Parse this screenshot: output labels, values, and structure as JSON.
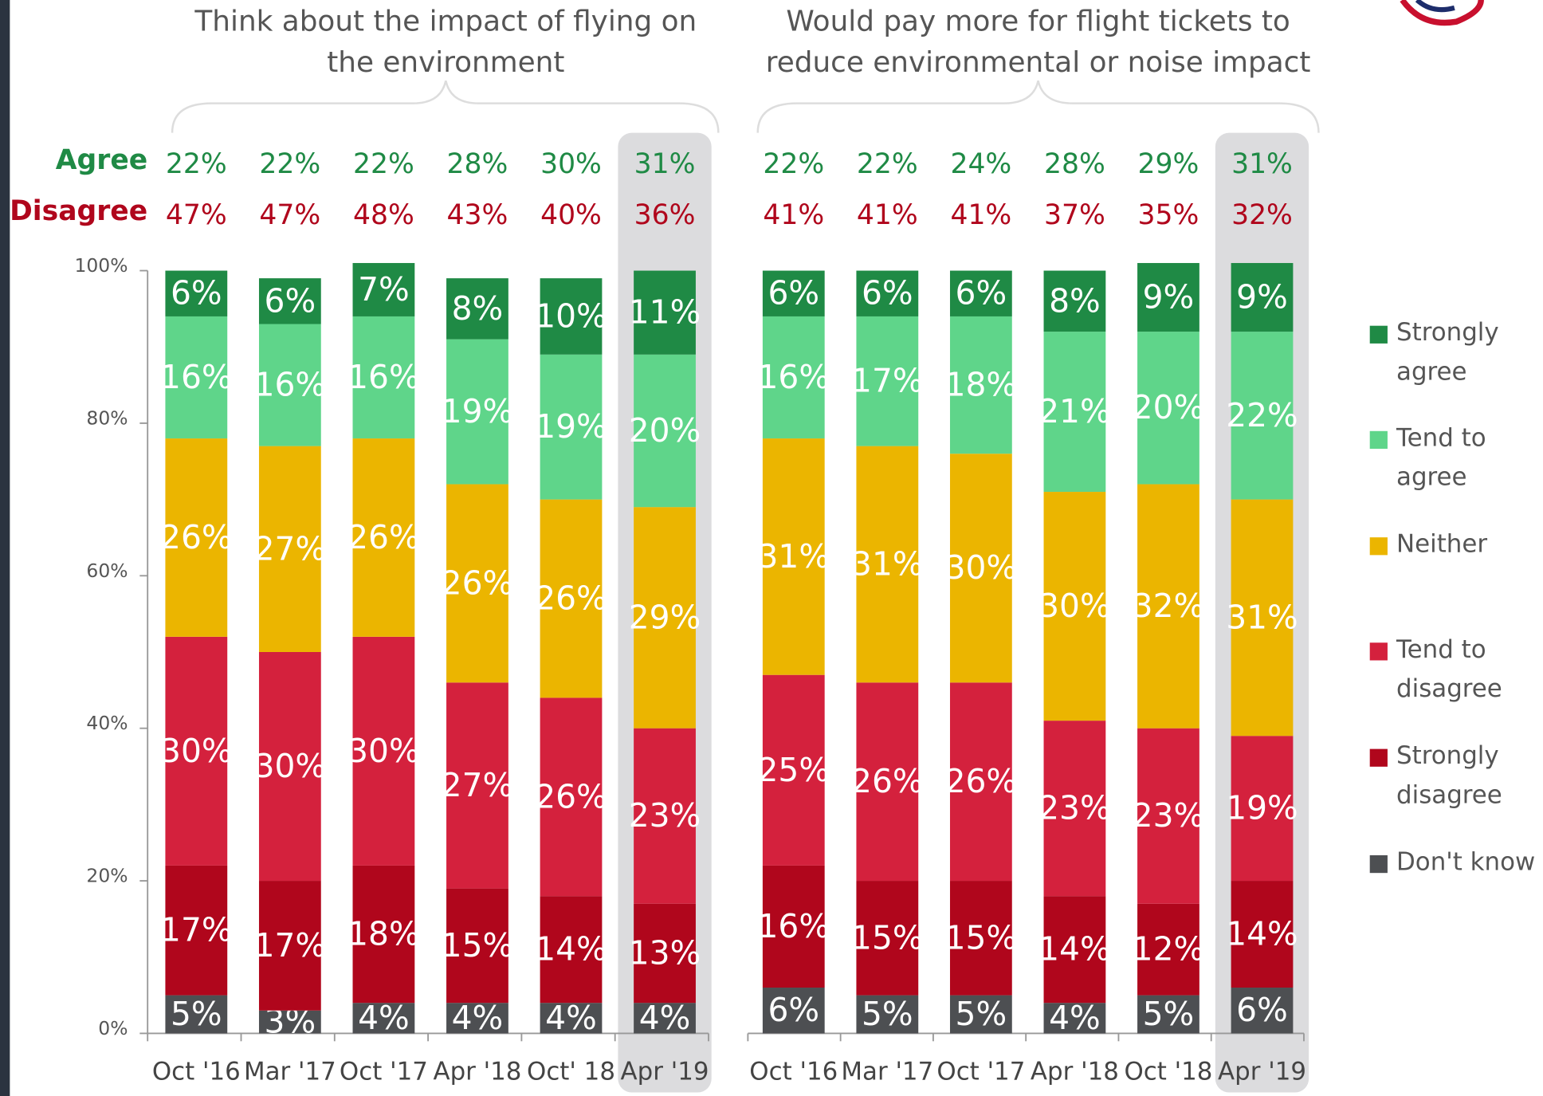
{
  "chart_data": [
    {
      "type": "stacked_bar",
      "title": "Think about the impact of flying on the environment",
      "categories": [
        "Oct '16",
        "Mar '17",
        "Oct '17",
        "Apr '18",
        "Oct' 18",
        "Apr '19"
      ],
      "agree": {
        "label": "Agree",
        "color": "#1f8a45",
        "values": [
          22,
          22,
          22,
          28,
          30,
          31
        ],
        "value_labels": [
          "22%",
          "22%",
          "22%",
          "28%",
          "30%",
          "31%"
        ]
      },
      "disagree": {
        "label": "Disagree",
        "color": "#b0061c",
        "values": [
          47,
          47,
          48,
          43,
          40,
          36
        ],
        "value_labels": [
          "47%",
          "47%",
          "48%",
          "43%",
          "40%",
          "36%"
        ]
      },
      "series": [
        {
          "name": "Don't know",
          "color": "#4d4f52",
          "values": [
            5,
            3,
            4,
            4,
            4,
            4
          ],
          "value_labels": [
            "5%",
            "3%",
            "4%",
            "4%",
            "4%",
            "4%"
          ]
        },
        {
          "name": "Strongly disagree",
          "color": "#b0061c",
          "values": [
            17,
            17,
            18,
            15,
            14,
            13
          ],
          "value_labels": [
            "17%",
            "17%",
            "18%",
            "15%",
            "14%",
            "13%"
          ]
        },
        {
          "name": "Tend to disagree",
          "color": "#d4213d",
          "values": [
            30,
            30,
            30,
            27,
            26,
            23
          ],
          "value_labels": [
            "30%",
            "30%",
            "30%",
            "27%",
            "26%",
            "23%"
          ]
        },
        {
          "name": "Neither",
          "color": "#ebb500",
          "values": [
            26,
            27,
            26,
            26,
            26,
            29
          ],
          "value_labels": [
            "26%",
            "27%",
            "26%",
            "26%",
            "26%",
            "29%"
          ]
        },
        {
          "name": "Tend to agree",
          "color": "#5fd58a",
          "values": [
            16,
            16,
            16,
            19,
            19,
            20
          ],
          "value_labels": [
            "16%",
            "16%",
            "16%",
            "19%",
            "19%",
            "20%"
          ]
        },
        {
          "name": "Strongly agree",
          "color": "#1f8a45",
          "values": [
            6,
            6,
            7,
            8,
            10,
            11
          ],
          "value_labels": [
            "6%",
            "6%",
            "7%",
            "8%",
            "10%",
            "11%"
          ]
        }
      ],
      "ylim": [
        0,
        100
      ],
      "yticks": [
        {
          "value": 0,
          "label": "0%"
        },
        {
          "value": 20,
          "label": "20%"
        },
        {
          "value": 40,
          "label": "40%"
        },
        {
          "value": 60,
          "label": "60%"
        },
        {
          "value": 80,
          "label": "80%"
        },
        {
          "value": 100,
          "label": "100%"
        }
      ],
      "legend": "right"
    },
    {
      "type": "stacked_bar",
      "title": "Would pay more for flight tickets to reduce environmental or noise impact",
      "categories": [
        "Oct '16",
        "Mar '17",
        "Oct '17",
        "Apr '18",
        "Oct '18",
        "Apr '19"
      ],
      "agree": {
        "color": "#1f8a45",
        "values": [
          22,
          22,
          24,
          28,
          29,
          31
        ],
        "value_labels": [
          "22%",
          "22%",
          "24%",
          "28%",
          "29%",
          "31%"
        ]
      },
      "disagree": {
        "color": "#b0061c",
        "values": [
          41,
          41,
          41,
          37,
          35,
          32
        ],
        "value_labels": [
          "41%",
          "41%",
          "41%",
          "37%",
          "35%",
          "32%"
        ]
      },
      "series": [
        {
          "color": "#4d4f52",
          "values": [
            6,
            5,
            5,
            4,
            5,
            6
          ],
          "value_labels": [
            "6%",
            "5%",
            "5%",
            "4%",
            "5%",
            "6%"
          ]
        },
        {
          "color": "#b0061c",
          "values": [
            16,
            15,
            15,
            14,
            12,
            14
          ],
          "value_labels": [
            "16%",
            "15%",
            "15%",
            "14%",
            "12%",
            "14%"
          ]
        },
        {
          "color": "#d4213d",
          "values": [
            25,
            26,
            26,
            23,
            23,
            19
          ],
          "value_labels": [
            "25%",
            "26%",
            "26%",
            "23%",
            "23%",
            "19%"
          ]
        },
        {
          "color": "#ebb500",
          "values": [
            31,
            31,
            30,
            30,
            32,
            31
          ],
          "value_labels": [
            "31%",
            "31%",
            "30%",
            "30%",
            "32%",
            "31%"
          ]
        },
        {
          "color": "#5fd58a",
          "values": [
            16,
            17,
            18,
            21,
            20,
            22
          ],
          "value_labels": [
            "16%",
            "17%",
            "18%",
            "21%",
            "20%",
            "22%"
          ]
        },
        {
          "color": "#1f8a45",
          "values": [
            6,
            6,
            6,
            8,
            9,
            9
          ],
          "value_labels": [
            "6%",
            "6%",
            "6%",
            "8%",
            "9%",
            "9%"
          ]
        }
      ],
      "ylim": [
        0,
        100
      ]
    }
  ]
}
